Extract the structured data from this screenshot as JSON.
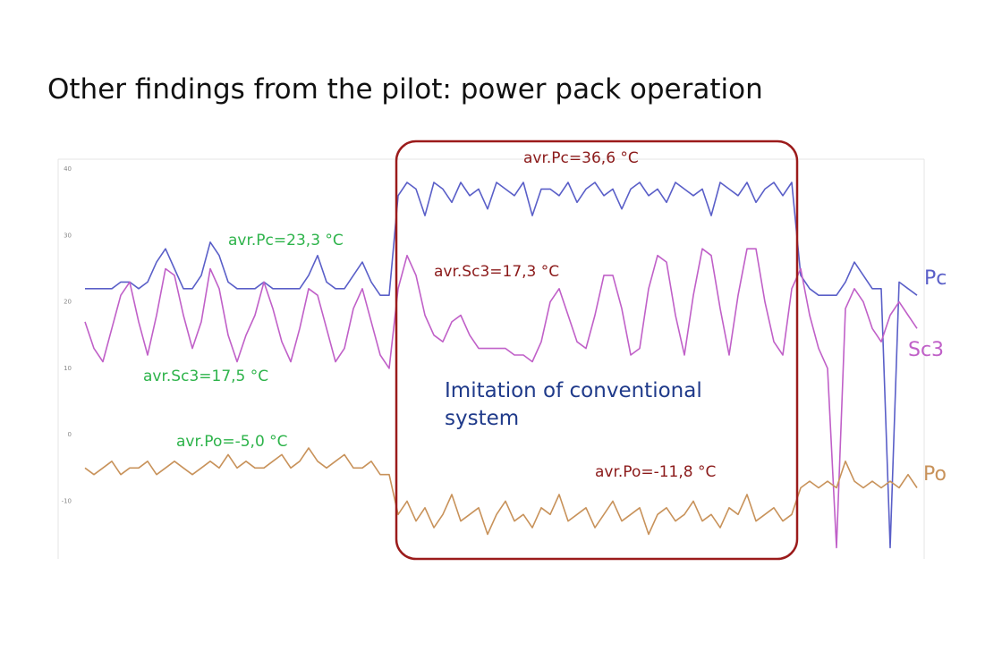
{
  "title": "Other findings from the pilot: power pack operation",
  "chart_data": {
    "type": "line",
    "ylim": [
      -18.7,
      41.5
    ],
    "yticks": [
      40,
      30,
      20,
      10,
      0,
      -10
    ],
    "series": [
      {
        "name": "Pc",
        "color": "#5a5fc8",
        "values": [
          22,
          22,
          22,
          22,
          23,
          23,
          22,
          23,
          26,
          28,
          25,
          22,
          22,
          24,
          29,
          27,
          23,
          22,
          22,
          22,
          23,
          22,
          22,
          22,
          22,
          24,
          27,
          23,
          22,
          22,
          24,
          26,
          23,
          21,
          21,
          36,
          38,
          37,
          33,
          38,
          37,
          35,
          38,
          36,
          37,
          34,
          38,
          37,
          36,
          38,
          33,
          37,
          37,
          36,
          38,
          35,
          37,
          38,
          36,
          37,
          34,
          37,
          38,
          36,
          37,
          35,
          38,
          37,
          36,
          37,
          33,
          38,
          37,
          36,
          38,
          35,
          37,
          38,
          36,
          38,
          24,
          22,
          21,
          21,
          21,
          23,
          26,
          24,
          22,
          22,
          -17,
          23,
          22,
          21
        ]
      },
      {
        "name": "Sc3",
        "color": "#c060c8",
        "values": [
          17,
          13,
          11,
          16,
          21,
          23,
          17,
          12,
          18,
          25,
          24,
          18,
          13,
          17,
          25,
          22,
          15,
          11,
          15,
          18,
          23,
          19,
          14,
          11,
          16,
          22,
          21,
          16,
          11,
          13,
          19,
          22,
          17,
          12,
          10,
          22,
          27,
          24,
          18,
          15,
          14,
          17,
          18,
          15,
          13,
          13,
          13,
          13,
          12,
          12,
          11,
          14,
          20,
          22,
          18,
          14,
          13,
          18,
          24,
          24,
          19,
          12,
          13,
          22,
          27,
          26,
          18,
          12,
          21,
          28,
          27,
          19,
          12,
          21,
          28,
          28,
          20,
          14,
          12,
          22,
          25,
          18,
          13,
          10,
          -17,
          19,
          22,
          20,
          16,
          14,
          18,
          20,
          18,
          16
        ]
      },
      {
        "name": "Po",
        "color": "#c8925a",
        "values": [
          -5,
          -6,
          -5,
          -4,
          -6,
          -5,
          -5,
          -4,
          -6,
          -5,
          -4,
          -5,
          -6,
          -5,
          -4,
          -5,
          -3,
          -5,
          -4,
          -5,
          -5,
          -4,
          -3,
          -5,
          -4,
          -2,
          -4,
          -5,
          -4,
          -3,
          -5,
          -5,
          -4,
          -6,
          -6,
          -12,
          -10,
          -13,
          -11,
          -14,
          -12,
          -9,
          -13,
          -12,
          -11,
          -15,
          -12,
          -10,
          -13,
          -12,
          -14,
          -11,
          -12,
          -9,
          -13,
          -12,
          -11,
          -14,
          -12,
          -10,
          -13,
          -12,
          -11,
          -15,
          -12,
          -11,
          -13,
          -12,
          -10,
          -13,
          -12,
          -14,
          -11,
          -12,
          -9,
          -13,
          -12,
          -11,
          -13,
          -12,
          -8,
          -7,
          -8,
          -7,
          -8,
          -4,
          -7,
          -8,
          -7,
          -8,
          -7,
          -8,
          -6,
          -8
        ]
      }
    ],
    "annotations": [
      {
        "text": "avr.Pc=23,3 °C",
        "color": "#2db34a"
      },
      {
        "text": "avr.Sc3=17,5 °C",
        "color": "#2db34a"
      },
      {
        "text": "avr.Po=-5,0 °C",
        "color": "#2db34a"
      },
      {
        "text": "avr.Pc=36,6 °C",
        "color": "#8b1a1a"
      },
      {
        "text": "avr.Sc3=17,3 °C",
        "color": "#8b1a1a"
      },
      {
        "text": "avr.Po=-11,8 °C",
        "color": "#8b1a1a"
      }
    ],
    "callout": "Imitation of conventional system"
  }
}
